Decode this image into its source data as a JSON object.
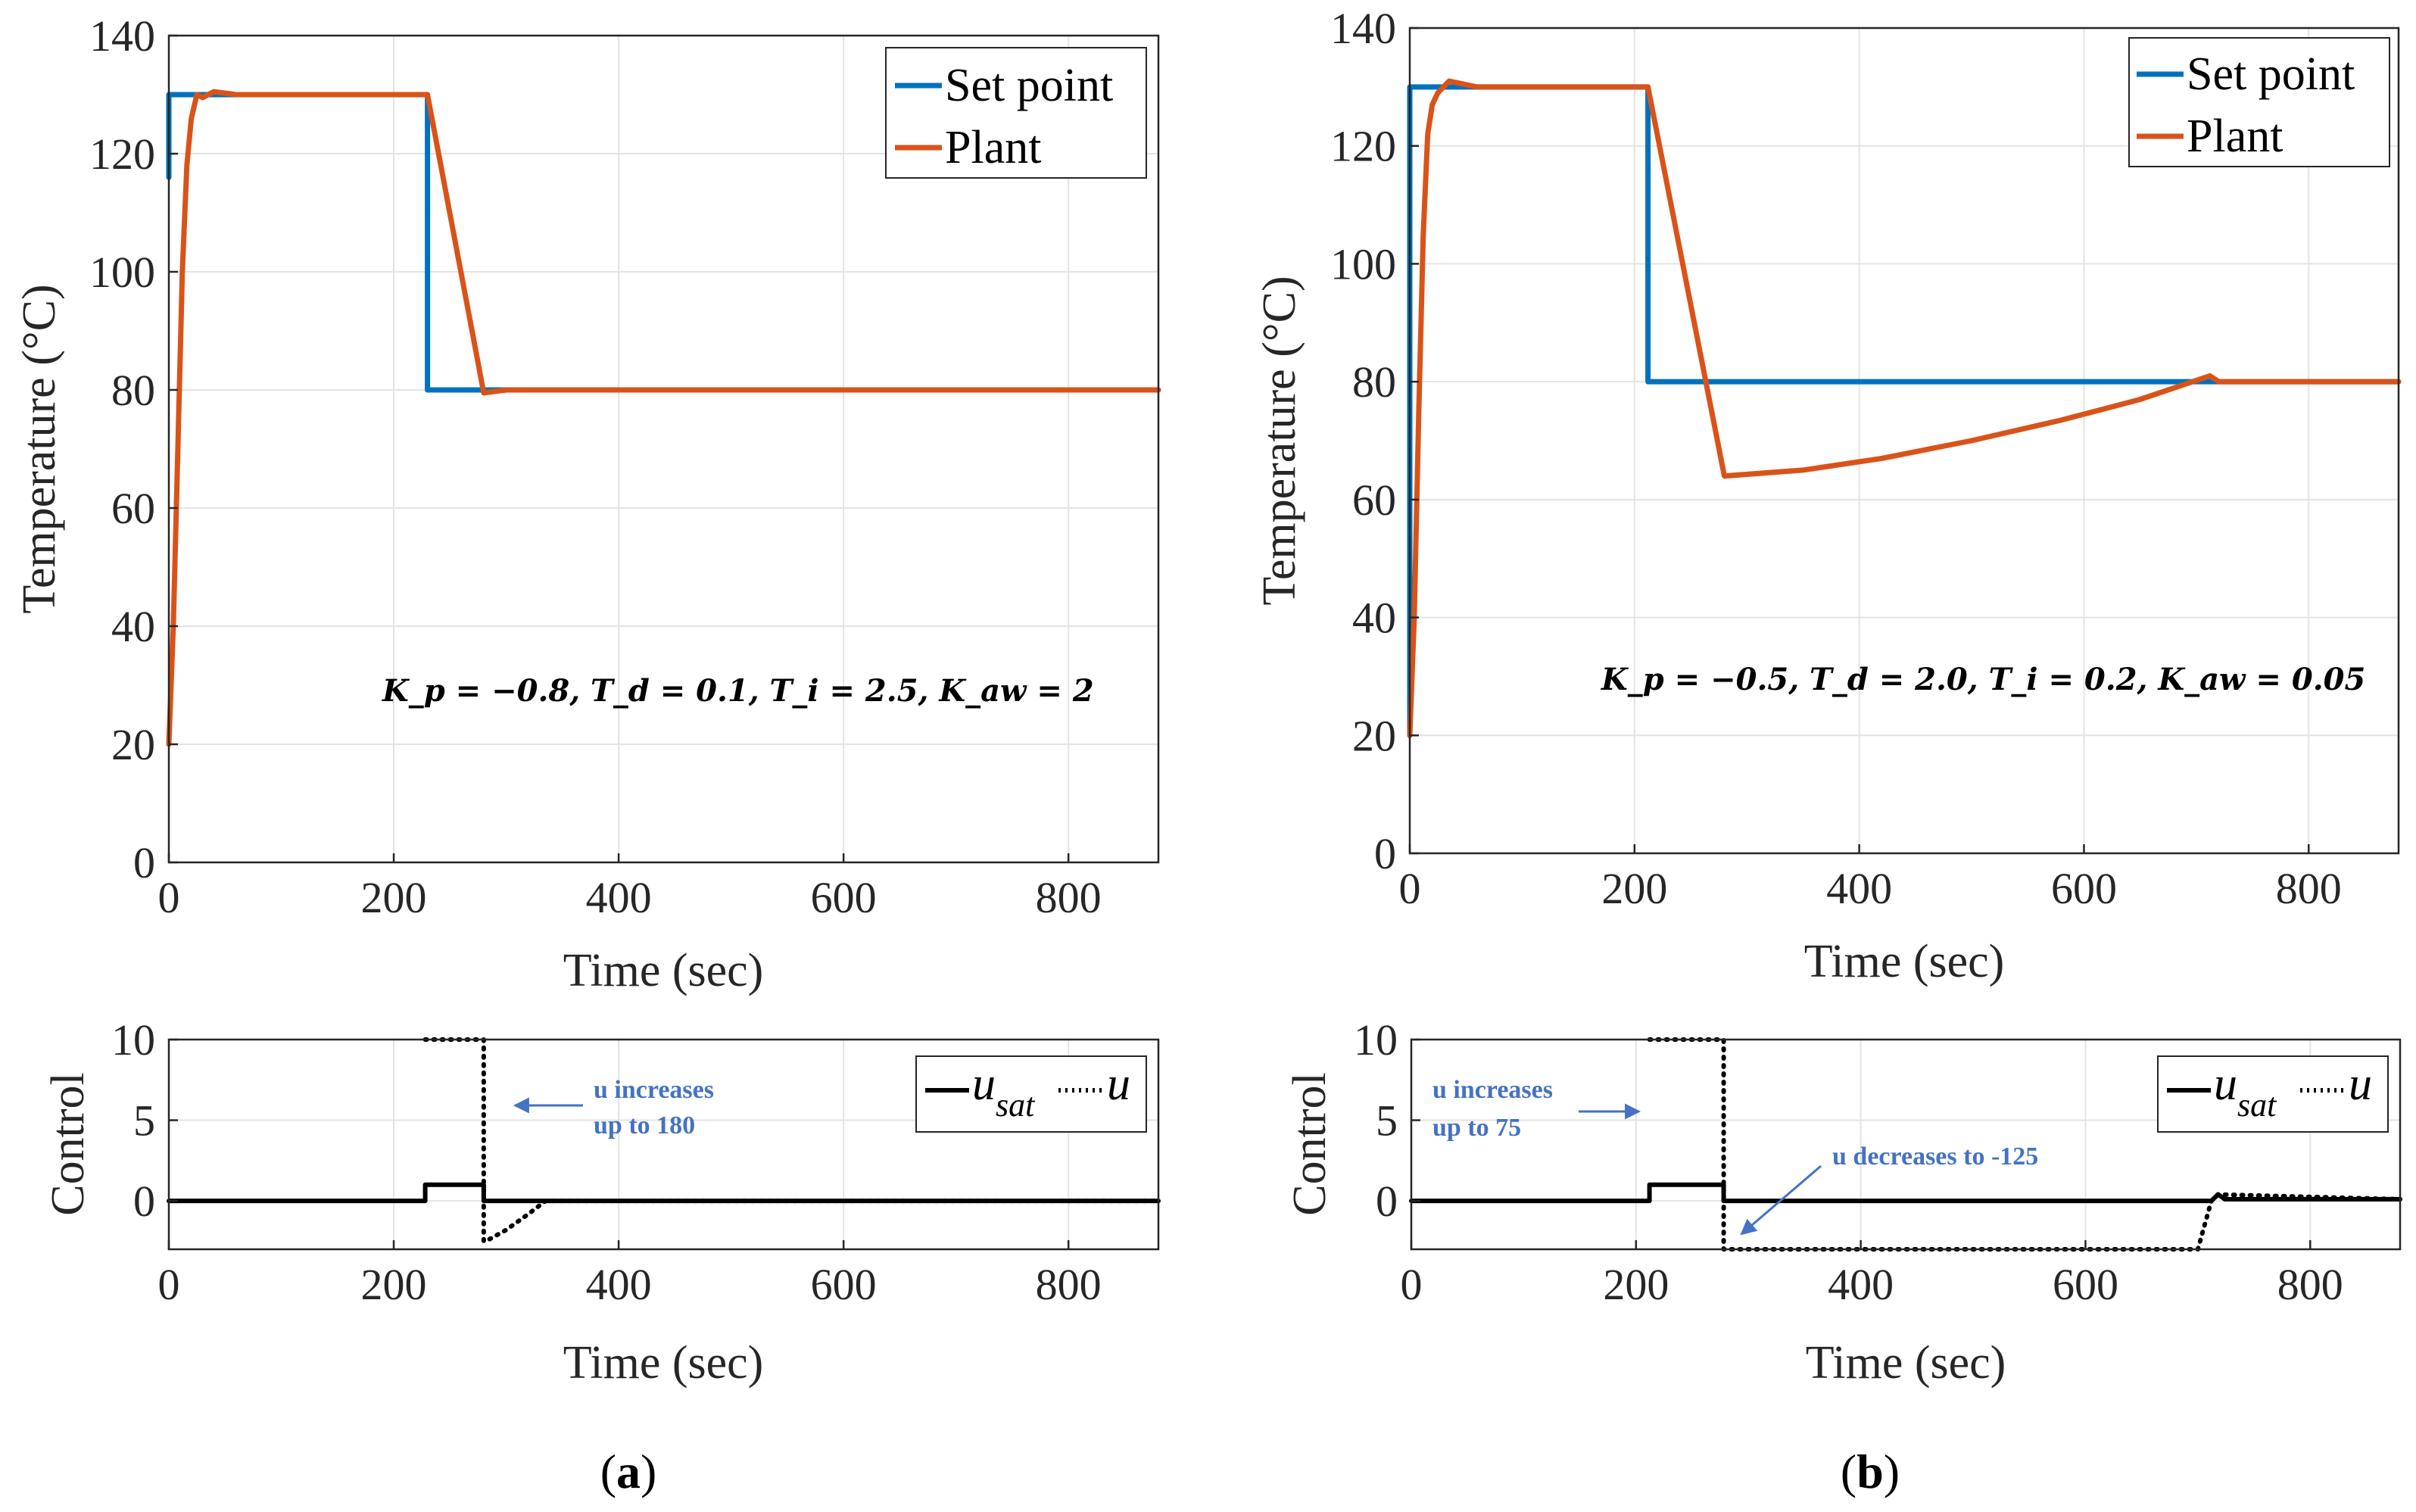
{
  "chart_data": [
    {
      "id": "a_top",
      "type": "line",
      "xlabel": "Time (sec)",
      "ylabel": "Temperature (°C)",
      "xlim": [
        0,
        880
      ],
      "ylim": [
        0,
        140
      ],
      "xticks": [
        0,
        200,
        400,
        600,
        800
      ],
      "yticks": [
        0,
        20,
        40,
        60,
        80,
        100,
        120,
        140
      ],
      "legend": {
        "position": "top-right",
        "entries": [
          "Set point",
          "Plant"
        ]
      },
      "annotation": "K_p = −0.8, T_d = 0.1, T_i = 2.5, K_aw = 2",
      "series": [
        {
          "name": "Set point",
          "color": "#0072bd",
          "x": [
            0,
            0,
            230,
            230,
            880
          ],
          "y": [
            116,
            130,
            130,
            80,
            80
          ]
        },
        {
          "name": "Plant",
          "color": "#d95319",
          "x": [
            0,
            4,
            8,
            12,
            16,
            20,
            25,
            30,
            40,
            60,
            100,
            150,
            200,
            230,
            280,
            300,
            340,
            880
          ],
          "y": [
            20,
            40,
            70,
            100,
            118,
            126,
            130,
            129.5,
            130.5,
            130,
            130,
            130,
            130,
            130,
            79.5,
            80,
            80,
            80
          ]
        }
      ]
    },
    {
      "id": "a_bottom",
      "type": "line",
      "xlabel": "Time (sec)",
      "ylabel": "Control",
      "xlim": [
        0,
        880
      ],
      "ylim": [
        -3,
        10
      ],
      "xticks": [
        0,
        200,
        400,
        600,
        800
      ],
      "yticks": [
        0,
        5,
        10
      ],
      "legend": {
        "position": "top-right",
        "entries": [
          "u_sat",
          "u"
        ]
      },
      "annotation": {
        "line1": "u increases",
        "line2": "up to 180"
      },
      "series": [
        {
          "name": "u_sat",
          "style": "solid",
          "x": [
            0,
            228,
            228,
            280,
            280,
            880
          ],
          "y": [
            0,
            0,
            1,
            1,
            0,
            0
          ]
        },
        {
          "name": "u",
          "style": "dotted",
          "x": [
            228,
            228,
            280,
            280,
            282,
            300,
            320,
            335,
            880
          ],
          "y": [
            10,
            10,
            10,
            -2.5,
            -2.5,
            -1.8,
            -0.8,
            0,
            0
          ]
        }
      ]
    },
    {
      "id": "b_top",
      "type": "line",
      "xlabel": "Time (sec)",
      "ylabel": "Temperature (°C)",
      "xlim": [
        0,
        880
      ],
      "ylim": [
        0,
        140
      ],
      "xticks": [
        0,
        200,
        400,
        600,
        800
      ],
      "yticks": [
        0,
        20,
        40,
        60,
        80,
        100,
        120,
        140
      ],
      "legend": {
        "position": "top-right",
        "entries": [
          "Set point",
          "Plant"
        ]
      },
      "annotation": "K_p = −0.5, T_d = 2.0, T_i = 0.2, K_aw = 0.05",
      "series": [
        {
          "name": "Set point",
          "color": "#0072bd",
          "x": [
            0,
            0,
            212,
            212,
            880
          ],
          "y": [
            20,
            130,
            130,
            80,
            80
          ]
        },
        {
          "name": "Plant",
          "color": "#d95319",
          "x": [
            0,
            4,
            8,
            12,
            16,
            20,
            25,
            30,
            35,
            60,
            100,
            150,
            212,
            280,
            350,
            420,
            500,
            580,
            650,
            712,
            720,
            880
          ],
          "y": [
            20,
            40,
            75,
            105,
            122,
            127,
            129,
            130,
            131,
            130,
            130,
            130,
            130,
            64,
            65,
            67,
            70,
            73.5,
            77,
            81,
            80,
            80
          ]
        }
      ]
    },
    {
      "id": "b_bottom",
      "type": "line",
      "xlabel": "Time (sec)",
      "ylabel": "Control",
      "xlim": [
        0,
        880
      ],
      "ylim": [
        -3,
        10
      ],
      "xticks": [
        0,
        200,
        400,
        600,
        800
      ],
      "yticks": [
        0,
        5,
        10
      ],
      "legend": {
        "position": "top-right",
        "entries": [
          "u_sat",
          "u"
        ]
      },
      "annotations": [
        {
          "line1": "u increases",
          "line2": "up to 75"
        },
        {
          "line1": "u decreases to -125"
        }
      ],
      "series": [
        {
          "name": "u_sat",
          "style": "solid",
          "x": [
            0,
            212,
            212,
            278,
            278,
            712,
            718,
            724,
            880
          ],
          "y": [
            0,
            0,
            1,
            1,
            0,
            0,
            0.4,
            0.1,
            0.1
          ]
        },
        {
          "name": "u",
          "style": "dotted",
          "x": [
            212,
            212,
            278,
            278,
            700,
            712,
            718,
            880
          ],
          "y": [
            10,
            10,
            10,
            -3,
            -3,
            0,
            0.4,
            0.1
          ]
        }
      ]
    }
  ],
  "panel_labels": {
    "a": "(a)",
    "b": "(b)"
  },
  "colors": {
    "setpoint": "#0072bd",
    "plant": "#d95319",
    "control": "#000000",
    "annotation": "#4472c4"
  }
}
